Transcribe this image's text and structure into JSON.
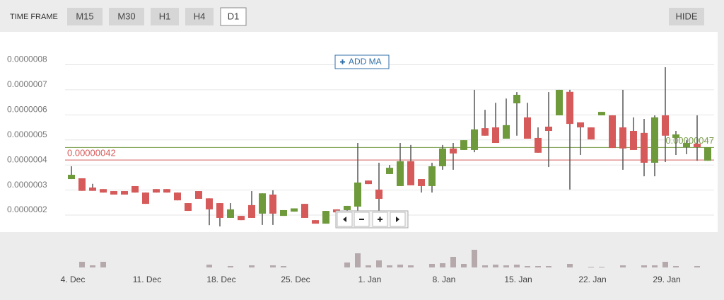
{
  "toolbar": {
    "label": "TIME FRAME",
    "buttons": [
      "M15",
      "M30",
      "H1",
      "H4",
      "D1"
    ],
    "active": 4,
    "hide": "HIDE"
  },
  "add_ma": "ADD MA",
  "chart_data": {
    "type": "candlestick",
    "categories": [
      "4. Dec",
      null,
      null,
      null,
      null,
      null,
      null,
      "11. Dec",
      null,
      null,
      null,
      null,
      null,
      null,
      "18. Dec",
      null,
      null,
      null,
      null,
      null,
      null,
      "25. Dec",
      null,
      null,
      null,
      null,
      null,
      null,
      "1. Jan",
      null,
      null,
      null,
      null,
      null,
      null,
      "8. Jan",
      null,
      null,
      null,
      null,
      null,
      null,
      "15. Jan",
      null,
      null,
      null,
      null,
      null,
      null,
      "22. Jan",
      null,
      null,
      null,
      null,
      null,
      null,
      "29. Jan",
      null,
      null,
      null,
      null
    ],
    "open": [
      3.44e-07,
      3.47e-07,
      3.1e-07,
      3.04e-07,
      2.96e-07,
      2.96e-07,
      3.16e-07,
      2.9e-07,
      3.04e-07,
      3.04e-07,
      2.9e-07,
      2.48e-07,
      2.96e-07,
      2.67e-07,
      2.48e-07,
      1.89e-07,
      1.97e-07,
      2.4e-07,
      2.06e-07,
      2.82e-07,
      1.97e-07,
      2.14e-07,
      2.45e-07,
      1.8e-07,
      1.66e-07,
      2.23e-07,
      2.2e-07,
      2.34e-07,
      3.38e-07,
      3.02e-07,
      3.64e-07,
      3.16e-07,
      4.15e-07,
      3.44e-07,
      3.16e-07,
      3.95e-07,
      4.66e-07,
      4.6e-07,
      4.6e-07,
      5.47e-07,
      5.5e-07,
      5.05e-07,
      6.46e-07,
      5.9e-07,
      5.08e-07,
      5.53e-07,
      5.98e-07,
      6.92e-07,
      5.7e-07,
      5.5e-07,
      5.98e-07,
      5.98e-07,
      5.5e-07,
      5.36e-07,
      5.28e-07,
      4.09e-07,
      5.98e-07,
      5.08e-07,
      4.71e-07,
      4.85e-07,
      4.17e-07
    ],
    "high": [
      3.95e-07,
      3.47e-07,
      3.25e-07,
      3.04e-07,
      2.96e-07,
      2.96e-07,
      3.16e-07,
      2.9e-07,
      3.04e-07,
      3.04e-07,
      2.9e-07,
      2.48e-07,
      2.96e-07,
      2.67e-07,
      2.48e-07,
      2.48e-07,
      1.97e-07,
      2.96e-07,
      2.87e-07,
      2.99e-07,
      2.2e-07,
      2.27e-07,
      2.45e-07,
      1.8e-07,
      2.17e-07,
      2.23e-07,
      2.37e-07,
      4.88e-07,
      3.38e-07,
      4.09e-07,
      4e-07,
      4.88e-07,
      4.8e-07,
      3.44e-07,
      4.09e-07,
      4.8e-07,
      4.88e-07,
      4.99e-07,
      7e-07,
      6.2e-07,
      6.48e-07,
      6.65e-07,
      6.91e-07,
      6.48e-07,
      5.5e-07,
      6.91e-07,
      7e-07,
      7e-07,
      5.7e-07,
      5.5e-07,
      6.12e-07,
      5.98e-07,
      7e-07,
      5.9e-07,
      5.84e-07,
      5.98e-07,
      7.9e-07,
      5.36e-07,
      4.99e-07,
      5.98e-07,
      4.71e-07
    ],
    "low": [
      3.44e-07,
      2.97e-07,
      2.97e-07,
      2.9e-07,
      2.82e-07,
      2.82e-07,
      2.9e-07,
      2.45e-07,
      2.9e-07,
      2.9e-07,
      2.59e-07,
      2.17e-07,
      2.65e-07,
      1.6e-07,
      1.55e-07,
      1.89e-07,
      1.8e-07,
      1.89e-07,
      1.61e-07,
      1.61e-07,
      1.97e-07,
      2.14e-07,
      1.89e-07,
      1.66e-07,
      1.66e-07,
      2.11e-07,
      2.05e-07,
      2.05e-07,
      3.24e-07,
      2.05e-07,
      3.64e-07,
      3.16e-07,
      3.19e-07,
      2.9e-07,
      2.9e-07,
      3.81e-07,
      3.81e-07,
      4.6e-07,
      4.51e-07,
      5.17e-07,
      4.88e-07,
      5.05e-07,
      5.17e-07,
      5.05e-07,
      4.49e-07,
      3.92e-07,
      5.98e-07,
      3.02e-07,
      4.4e-07,
      5.02e-07,
      5.98e-07,
      4.68e-07,
      3.81e-07,
      4.6e-07,
      3.55e-07,
      3.55e-07,
      4.12e-07,
      4.4e-07,
      4.43e-07,
      4.17e-07,
      4.17e-07
    ],
    "close": [
      3.61e-07,
      2.97e-07,
      2.97e-07,
      2.9e-07,
      2.82e-07,
      2.82e-07,
      2.9e-07,
      2.45e-07,
      2.9e-07,
      2.9e-07,
      2.59e-07,
      2.17e-07,
      2.65e-07,
      2.23e-07,
      1.89e-07,
      2.23e-07,
      1.8e-07,
      1.89e-07,
      2.87e-07,
      2.06e-07,
      2.2e-07,
      2.27e-07,
      1.89e-07,
      1.66e-07,
      2.17e-07,
      2.11e-07,
      2.37e-07,
      3.3e-07,
      3.24e-07,
      2.65e-07,
      3.89e-07,
      4.15e-07,
      3.19e-07,
      3.16e-07,
      3.95e-07,
      4.66e-07,
      4.46e-07,
      4.99e-07,
      5.42e-07,
      5.17e-07,
      4.88e-07,
      5.59e-07,
      6.8e-07,
      5.05e-07,
      4.49e-07,
      5.36e-07,
      7e-07,
      5.64e-07,
      5.5e-07,
      5.02e-07,
      6.12e-07,
      4.68e-07,
      4.66e-07,
      4.6e-07,
      4.09e-07,
      5.9e-07,
      5.17e-07,
      5.22e-07,
      4.88e-07,
      4.71e-07,
      4.71e-07
    ],
    "volume": [
      0,
      8,
      3,
      8,
      0,
      0,
      0,
      0,
      0,
      0,
      0,
      0,
      0,
      4,
      0,
      2,
      0,
      3,
      0,
      3,
      2,
      0,
      0,
      0,
      0,
      0,
      7,
      20,
      3,
      10,
      3,
      4,
      3,
      0,
      5,
      6,
      15,
      5,
      25,
      3,
      4,
      3,
      4,
      2,
      2,
      2,
      0,
      5,
      0,
      1,
      1,
      0,
      3,
      0,
      3,
      3,
      8,
      2,
      0,
      2,
      0
    ],
    "up_color": "#6f9a3c",
    "down_color": "#d65a5a",
    "volume_color": "#b5a9ab",
    "ylim": [
      1.55e-07,
      9.03e-07
    ],
    "yticks": [
      {
        "value": 2e-07,
        "label": "0.0000002"
      },
      {
        "value": 3e-07,
        "label": "0.0000003"
      },
      {
        "value": 4e-07,
        "label": "0.0000004"
      },
      {
        "value": 5e-07,
        "label": "0.0000005"
      },
      {
        "value": 6e-07,
        "label": "0.0000006"
      },
      {
        "value": 7e-07,
        "label": "0.0000007"
      },
      {
        "value": 8e-07,
        "label": "0.0000008"
      }
    ],
    "grid": true,
    "lines": [
      {
        "value": 4.7e-07,
        "label": "0.00000047",
        "color": "#7a9e4a",
        "side": "right"
      },
      {
        "value": 4.2e-07,
        "label": "0.00000042",
        "color": "#d65a5a",
        "side": "left"
      }
    ]
  }
}
